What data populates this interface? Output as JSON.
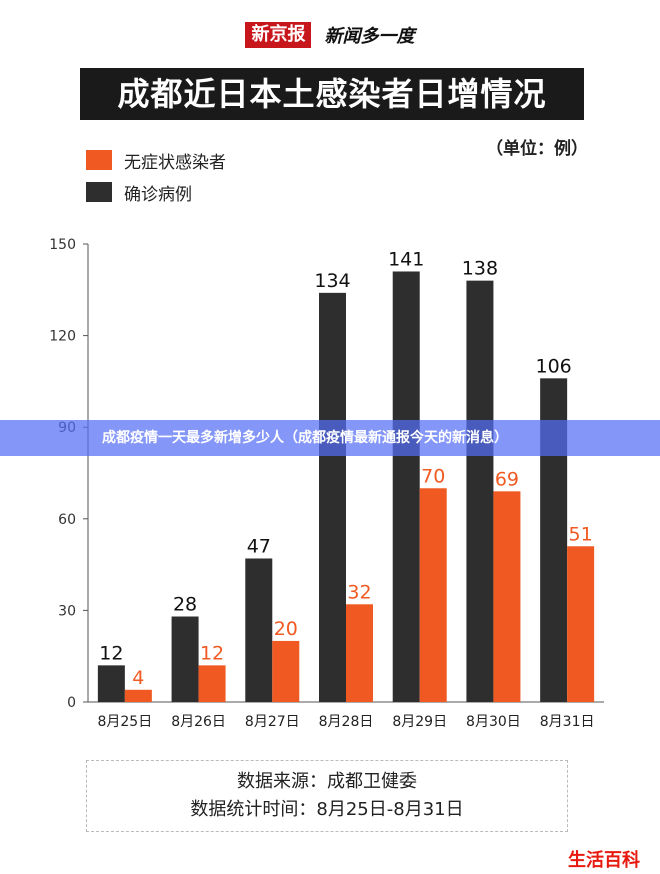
{
  "header": {
    "logo_text": "新京报",
    "sub_text": "新闻多一度"
  },
  "unit_text": "（单位：例）",
  "overlay": {
    "text": "成都疫情一天最多新增多少人（成都疫情最新通报今天的新消息）"
  },
  "source": {
    "line1": "数据来源：成都卫健委",
    "line2": "数据统计时间：8月25日-8月31日"
  },
  "watermark": "生活百科",
  "colors": {
    "asymptomatic": "#f05a22",
    "confirmed": "#2e2e2e",
    "title_bg": "#1a1a1a",
    "logo_bg": "#c8161d"
  },
  "chart_data": {
    "type": "bar",
    "title": "成都近日本土感染者日增情况",
    "categories": [
      "8月25日",
      "8月26日",
      "8月27日",
      "8月28日",
      "8月29日",
      "8月30日",
      "8月31日"
    ],
    "series": [
      {
        "name": "确诊病例",
        "values": [
          12,
          28,
          47,
          134,
          141,
          138,
          106
        ]
      },
      {
        "name": "无症状感染者",
        "values": [
          4,
          12,
          20,
          32,
          70,
          69,
          51
        ]
      }
    ],
    "yticks": [
      0,
      30,
      60,
      90,
      120,
      150
    ],
    "ylim": [
      0,
      150
    ],
    "grid": false,
    "legend_position": "top-left"
  }
}
